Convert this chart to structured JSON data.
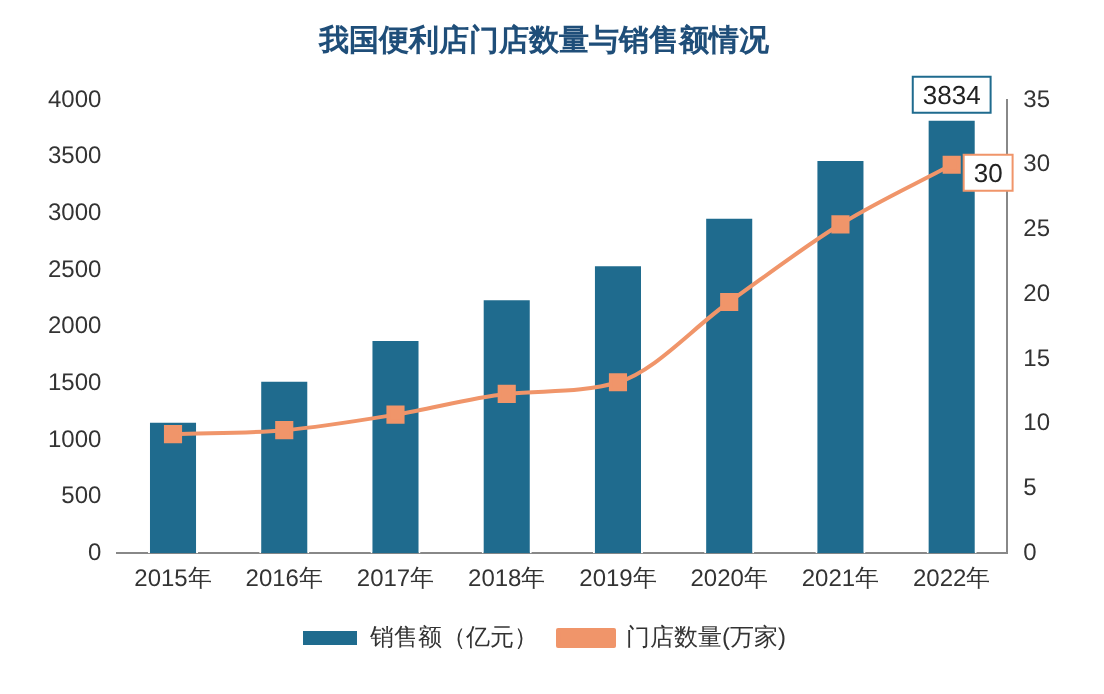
{
  "chart_data": {
    "type": "bar",
    "title": "我国便利店门店数量与销售额情况",
    "categories": [
      "2015年",
      "2016年",
      "2017年",
      "2018年",
      "2019年",
      "2020年",
      "2021年",
      "2022年"
    ],
    "series": [
      {
        "name": "销售额（亿元）",
        "color": "#1f6b8e",
        "values": [
          1170,
          1530,
          1890,
          2250,
          2550,
          2970,
          3480,
          3834
        ],
        "value_labels": [
          null,
          null,
          null,
          null,
          null,
          null,
          null,
          "3834"
        ]
      },
      {
        "name": "门店数量(万家)",
        "type": "line",
        "axis": "y2",
        "color": "#f0956a",
        "marker": "square",
        "values": [
          9.2,
          9.5,
          10.7,
          12.3,
          13.2,
          19.4,
          25.4,
          30
        ],
        "value_labels": [
          null,
          null,
          null,
          null,
          null,
          null,
          null,
          "30"
        ]
      }
    ],
    "ylim": [
      0,
      4000
    ],
    "yticks": [
      0,
      500,
      1000,
      1500,
      2000,
      2500,
      3000,
      3500,
      4000
    ],
    "y2lim": [
      0,
      35
    ],
    "y2ticks": [
      0,
      5,
      10,
      15,
      20,
      25,
      30,
      35
    ],
    "grid": false,
    "legend": "bottom"
  }
}
